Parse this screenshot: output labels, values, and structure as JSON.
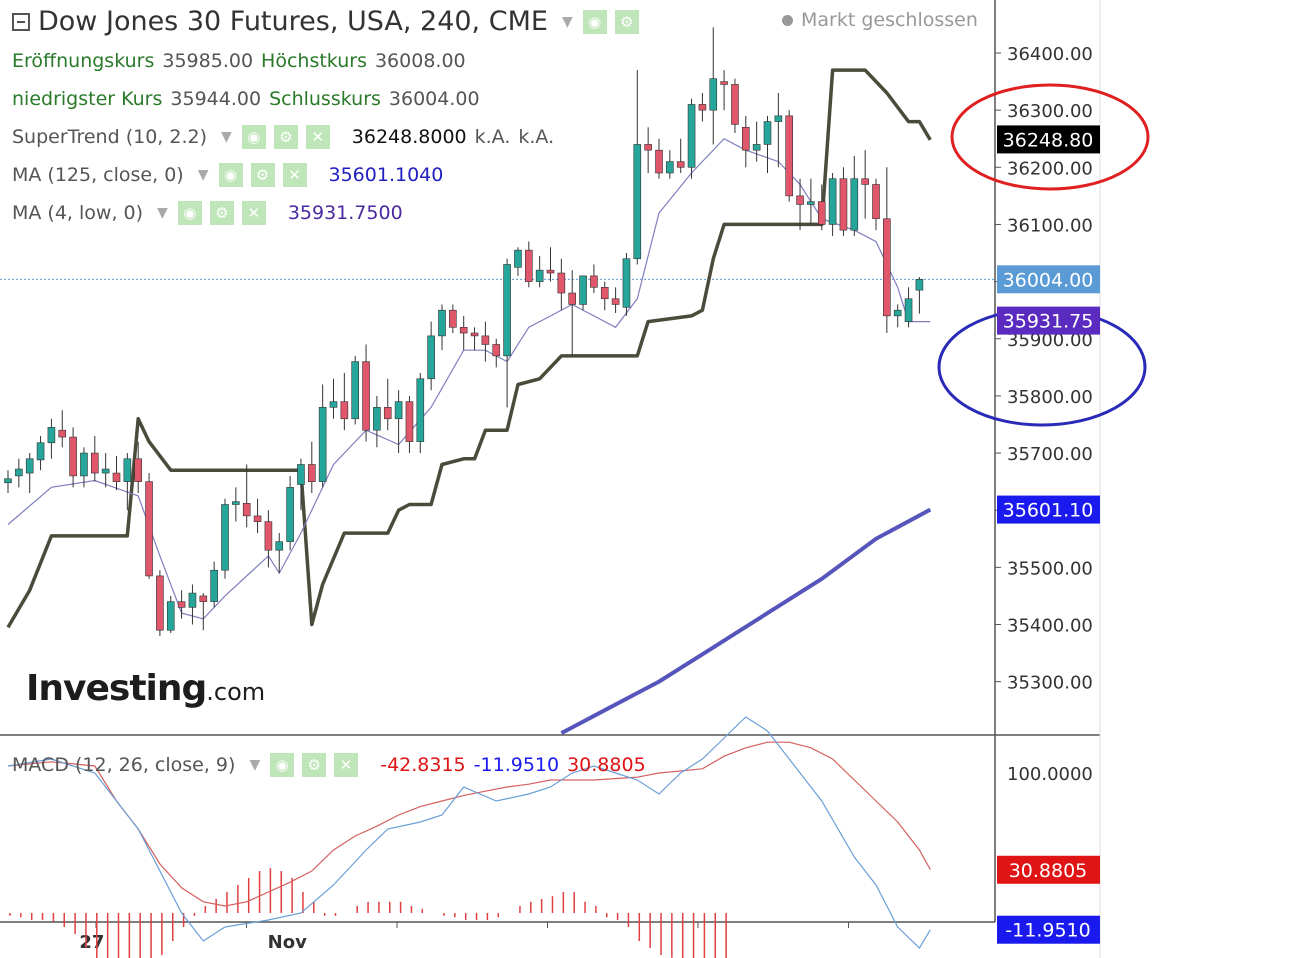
{
  "header": {
    "title": "Dow Jones 30 Futures, USA, 240, CME",
    "status": "Markt geschlossen",
    "open_label": "Eröffnungskurs",
    "open_value": "35985.00",
    "high_label": "Höchstkurs",
    "high_value": "36008.00",
    "low_label": "niedrigster Kurs",
    "low_value": "35944.00",
    "close_label": "Schlusskurs",
    "close_value": "36004.00"
  },
  "indicators": {
    "supertrend": {
      "label": "SuperTrend (10, 2.2)",
      "value": "36248.8000",
      "extra1": "k.A.",
      "extra2": "k.A."
    },
    "ma125": {
      "label": "MA (125, close, 0)",
      "value": "35601.1040"
    },
    "ma4": {
      "label": "MA (4, low, 0)",
      "value": "35931.7500"
    },
    "macd": {
      "label": "MACD (12, 26, close, 9)",
      "v1": "-42.8315",
      "v2": "-11.9510",
      "v3": "30.8805"
    }
  },
  "logo": {
    "brand": "Investing",
    "domain": ".com"
  },
  "icons": [
    "eye-icon",
    "gear-icon",
    "close-icon",
    "chevron-down-icon"
  ],
  "colors": {
    "up": "#26a69a",
    "down": "#e0566a",
    "supertrend": "#4b4b3c",
    "ma125": "#5555bb",
    "ma4": "#7f7fbf",
    "macd": "#6a9fd8",
    "signal": "#d46060",
    "hist": "#e04040"
  },
  "chart_data": [
    {
      "type": "candlestick",
      "yticks": [
        "35300.00",
        "35400.00",
        "35500.00",
        "35600.00",
        "35700.00",
        "35800.00",
        "35900.00",
        "36000.00",
        "36100.00",
        "36200.00",
        "36300.00",
        "36400.00"
      ],
      "xlabels": [
        {
          "label": "27",
          "index": 7
        },
        {
          "label": "Nov",
          "index": 25
        }
      ],
      "price_labels": [
        {
          "value": 36248.8,
          "text": "36248.80",
          "bg": "#000000"
        },
        {
          "value": 36004.0,
          "text": "36004.00",
          "bg": "#5b9bd5"
        },
        {
          "value": 35931.75,
          "text": "35931.75",
          "bg": "#5b2bc0"
        },
        {
          "value": 35601.1,
          "text": "35601.10",
          "bg": "#1a1aee"
        }
      ],
      "ohlc": [
        [
          35648,
          35670,
          35630,
          35655
        ],
        [
          35660,
          35690,
          35640,
          35672
        ],
        [
          35665,
          35700,
          35630,
          35690
        ],
        [
          35688,
          35730,
          35670,
          35718
        ],
        [
          35718,
          35760,
          35690,
          35745
        ],
        [
          35740,
          35775,
          35710,
          35728
        ],
        [
          35728,
          35745,
          35640,
          35660
        ],
        [
          35660,
          35710,
          35640,
          35700
        ],
        [
          35700,
          35730,
          35650,
          35665
        ],
        [
          35665,
          35700,
          35640,
          35672
        ],
        [
          35665,
          35695,
          35635,
          35650
        ],
        [
          35650,
          35700,
          35600,
          35690
        ],
        [
          35690,
          35720,
          35630,
          35650
        ],
        [
          35650,
          35665,
          35480,
          35485
        ],
        [
          35485,
          35495,
          35380,
          35390
        ],
        [
          35390,
          35450,
          35385,
          35440
        ],
        [
          35440,
          35460,
          35410,
          35430
        ],
        [
          35430,
          35470,
          35400,
          35455
        ],
        [
          35450,
          35455,
          35390,
          35440
        ],
        [
          35440,
          35510,
          35430,
          35495
        ],
        [
          35495,
          35620,
          35480,
          35610
        ],
        [
          35610,
          35640,
          35580,
          35615
        ],
        [
          35612,
          35680,
          35570,
          35590
        ],
        [
          35590,
          35620,
          35560,
          35580
        ],
        [
          35580,
          35600,
          35500,
          35530
        ],
        [
          35530,
          35560,
          35490,
          35545
        ],
        [
          35545,
          35660,
          35530,
          35640
        ],
        [
          35645,
          35690,
          35600,
          35680
        ],
        [
          35680,
          35720,
          35630,
          35650
        ],
        [
          35650,
          35820,
          35640,
          35780
        ],
        [
          35780,
          35830,
          35760,
          35790
        ],
        [
          35790,
          35840,
          35740,
          35760
        ],
        [
          35760,
          35870,
          35750,
          35860
        ],
        [
          35860,
          35890,
          35720,
          35740
        ],
        [
          35740,
          35800,
          35710,
          35780
        ],
        [
          35780,
          35830,
          35740,
          35760
        ],
        [
          35760,
          35810,
          35700,
          35790
        ],
        [
          35790,
          35800,
          35700,
          35720
        ],
        [
          35720,
          35840,
          35700,
          35830
        ],
        [
          35830,
          35930,
          35810,
          35905
        ],
        [
          35905,
          35960,
          35880,
          35950
        ],
        [
          35950,
          35960,
          35910,
          35920
        ],
        [
          35920,
          35940,
          35880,
          35910
        ],
        [
          35910,
          35920,
          35880,
          35905
        ],
        [
          35905,
          35930,
          35860,
          35890
        ],
        [
          35890,
          35900,
          35850,
          35870
        ],
        [
          35870,
          36040,
          35780,
          36030
        ],
        [
          36025,
          36060,
          36010,
          36055
        ],
        [
          36055,
          36070,
          35990,
          36000
        ],
        [
          36000,
          36045,
          35990,
          36020
        ],
        [
          36020,
          36060,
          36000,
          36015
        ],
        [
          36015,
          36040,
          35950,
          35980
        ],
        [
          35980,
          36020,
          35870,
          35960
        ],
        [
          35960,
          36010,
          35950,
          36010
        ],
        [
          36010,
          36030,
          35980,
          35990
        ],
        [
          35990,
          36000,
          35950,
          35970
        ],
        [
          35970,
          35990,
          35945,
          35960
        ],
        [
          35955,
          36050,
          35940,
          36040
        ],
        [
          36040,
          36370,
          36030,
          36240
        ],
        [
          36240,
          36270,
          36190,
          36230
        ],
        [
          36230,
          36250,
          36180,
          36190
        ],
        [
          36190,
          36230,
          36180,
          36210
        ],
        [
          36210,
          36250,
          36190,
          36200
        ],
        [
          36200,
          36320,
          36180,
          36310
        ],
        [
          36310,
          36330,
          36280,
          36300
        ],
        [
          36300,
          36445,
          36240,
          36355
        ],
        [
          36350,
          36370,
          36300,
          36345
        ],
        [
          36345,
          36355,
          36260,
          36275
        ],
        [
          36270,
          36290,
          36200,
          36230
        ],
        [
          36230,
          36280,
          36210,
          36240
        ],
        [
          36240,
          36290,
          36190,
          36280
        ],
        [
          36280,
          36330,
          36200,
          36290
        ],
        [
          36290,
          36300,
          36140,
          36150
        ],
        [
          36150,
          36180,
          36090,
          36135
        ],
        [
          36135,
          36180,
          36100,
          36140
        ],
        [
          36140,
          36170,
          36090,
          36100
        ],
        [
          36100,
          36190,
          36080,
          36180
        ],
        [
          36180,
          36200,
          36080,
          36090
        ],
        [
          36090,
          36220,
          36080,
          36180
        ],
        [
          36180,
          36230,
          36110,
          36170
        ],
        [
          36170,
          36180,
          36090,
          36110
        ],
        [
          36110,
          36200,
          35910,
          35940
        ],
        [
          35940,
          35960,
          35920,
          35950
        ],
        [
          35930,
          35990,
          35920,
          35970
        ],
        [
          35985,
          36008,
          35944,
          36004
        ]
      ],
      "ma4": [
        [
          0,
          35575
        ],
        [
          4,
          35640
        ],
        [
          8,
          35652
        ],
        [
          12,
          35625
        ],
        [
          14,
          35520
        ],
        [
          16,
          35420
        ],
        [
          18,
          35410
        ],
        [
          20,
          35450
        ],
        [
          24,
          35520
        ],
        [
          25,
          35490
        ],
        [
          27,
          35560
        ],
        [
          30,
          35680
        ],
        [
          33,
          35740
        ],
        [
          36,
          35715
        ],
        [
          39,
          35780
        ],
        [
          42,
          35880
        ],
        [
          44,
          35880
        ],
        [
          46,
          35860
        ],
        [
          48,
          35920
        ],
        [
          52,
          35960
        ],
        [
          54,
          35940
        ],
        [
          56,
          35920
        ],
        [
          58,
          35970
        ],
        [
          60,
          36120
        ],
        [
          63,
          36190
        ],
        [
          66,
          36250
        ],
        [
          68,
          36230
        ],
        [
          71,
          36210
        ],
        [
          73,
          36170
        ],
        [
          75,
          36110
        ],
        [
          78,
          36090
        ],
        [
          80,
          36070
        ],
        [
          82,
          35990
        ],
        [
          83,
          35930
        ],
        [
          85,
          35930
        ]
      ],
      "supertrend": [
        [
          0,
          35395
        ],
        [
          2,
          35460
        ],
        [
          4,
          35555
        ],
        [
          11,
          35555
        ],
        [
          12,
          35760
        ],
        [
          13,
          35720
        ],
        [
          15,
          35670
        ],
        [
          27,
          35670
        ],
        [
          28,
          35400
        ],
        [
          29,
          35470
        ],
        [
          31,
          35560
        ],
        [
          35,
          35560
        ],
        [
          36,
          35600
        ],
        [
          37,
          35610
        ],
        [
          39,
          35610
        ],
        [
          40,
          35680
        ],
        [
          42,
          35690
        ],
        [
          43,
          35690
        ],
        [
          44,
          35740
        ],
        [
          46,
          35740
        ],
        [
          47,
          35820
        ],
        [
          49,
          35830
        ],
        [
          51,
          35870
        ],
        [
          58,
          35870
        ],
        [
          59,
          35930
        ],
        [
          63,
          35940
        ],
        [
          64,
          35950
        ],
        [
          65,
          36040
        ],
        [
          66,
          36100
        ],
        [
          75,
          36100
        ],
        [
          76,
          36370
        ],
        [
          79,
          36370
        ],
        [
          81,
          36330
        ],
        [
          83,
          36280
        ],
        [
          84,
          36280
        ],
        [
          85,
          36248
        ]
      ],
      "ma125": [
        [
          51,
          35210
        ],
        [
          55,
          35250
        ],
        [
          60,
          35300
        ],
        [
          65,
          35360
        ],
        [
          70,
          35420
        ],
        [
          75,
          35480
        ],
        [
          80,
          35550
        ],
        [
          85,
          35601
        ]
      ]
    },
    {
      "type": "macd",
      "yticks": [
        "100.0000"
      ],
      "price_labels": [
        {
          "value": 30.8805,
          "text": "30.8805",
          "bg": "#e01414"
        },
        {
          "value": -11.951,
          "text": "-11.9510",
          "bg": "#1a1aee"
        },
        {
          "value": -42.8315,
          "text": "-42.8315",
          "bg": "#e01414"
        }
      ],
      "macd": [
        [
          0,
          105
        ],
        [
          4,
          110
        ],
        [
          8,
          100
        ],
        [
          12,
          60
        ],
        [
          16,
          0
        ],
        [
          18,
          -20
        ],
        [
          20,
          -10
        ],
        [
          24,
          -5
        ],
        [
          27,
          0
        ],
        [
          30,
          20
        ],
        [
          33,
          45
        ],
        [
          35,
          60
        ],
        [
          38,
          65
        ],
        [
          40,
          70
        ],
        [
          42,
          90
        ],
        [
          45,
          80
        ],
        [
          48,
          85
        ],
        [
          50,
          90
        ],
        [
          52,
          100
        ],
        [
          54,
          105
        ],
        [
          56,
          100
        ],
        [
          58,
          95
        ],
        [
          60,
          85
        ],
        [
          62,
          100
        ],
        [
          64,
          110
        ],
        [
          66,
          125
        ],
        [
          68,
          140
        ],
        [
          70,
          130
        ],
        [
          72,
          110
        ],
        [
          75,
          80
        ],
        [
          78,
          40
        ],
        [
          80,
          20
        ],
        [
          82,
          -10
        ],
        [
          84,
          -25
        ],
        [
          85,
          -12
        ]
      ],
      "signal": [
        [
          0,
          105
        ],
        [
          4,
          108
        ],
        [
          8,
          105
        ],
        [
          10,
          80
        ],
        [
          12,
          60
        ],
        [
          14,
          35
        ],
        [
          16,
          18
        ],
        [
          18,
          8
        ],
        [
          20,
          5
        ],
        [
          22,
          8
        ],
        [
          24,
          15
        ],
        [
          26,
          22
        ],
        [
          28,
          30
        ],
        [
          30,
          45
        ],
        [
          32,
          55
        ],
        [
          34,
          62
        ],
        [
          36,
          70
        ],
        [
          38,
          76
        ],
        [
          40,
          80
        ],
        [
          42,
          84
        ],
        [
          44,
          87
        ],
        [
          46,
          90
        ],
        [
          48,
          92
        ],
        [
          50,
          95
        ],
        [
          54,
          95
        ],
        [
          58,
          97
        ],
        [
          60,
          100
        ],
        [
          64,
          103
        ],
        [
          66,
          112
        ],
        [
          68,
          118
        ],
        [
          70,
          122
        ],
        [
          72,
          122
        ],
        [
          74,
          118
        ],
        [
          76,
          110
        ],
        [
          78,
          95
        ],
        [
          80,
          80
        ],
        [
          82,
          65
        ],
        [
          84,
          45
        ],
        [
          85,
          31
        ]
      ],
      "hist": [
        -2,
        -3,
        -5,
        -5,
        -6,
        -10,
        -15,
        -25,
        -35,
        -40,
        -45,
        -48,
        -45,
        -40,
        -30,
        -20,
        -10,
        -2,
        5,
        10,
        15,
        20,
        25,
        30,
        32,
        30,
        25,
        15,
        8,
        -2,
        -2,
        0,
        5,
        8,
        8,
        8,
        8,
        5,
        3,
        0,
        -2,
        -3,
        -5,
        -5,
        -5,
        -3,
        0,
        5,
        8,
        10,
        12,
        15,
        15,
        8,
        5,
        -3,
        -5,
        -10,
        -20,
        -25,
        -30,
        -32,
        -40,
        -45,
        -45,
        -40,
        -45
      ]
    }
  ]
}
